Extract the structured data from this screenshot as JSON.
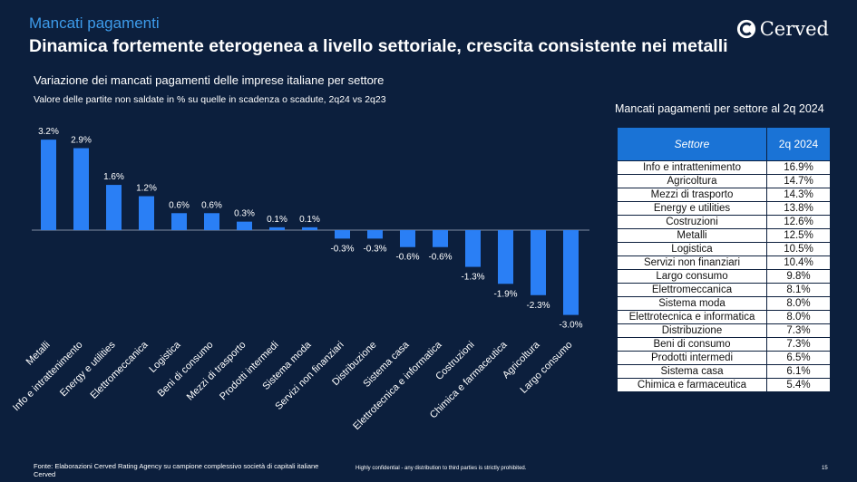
{
  "header": {
    "subtitle": "Mancati pagamenti",
    "title": "Dinamica fortemente eterogenea a livello settoriale, crescita consistente nei metalli",
    "brand": "Cerved"
  },
  "chart_data": {
    "type": "bar",
    "title": "Variazione dei mancati pagamenti delle imprese italiane per settore",
    "subtitle": "Valore delle partite non saldate in % su quelle in scadenza o scadute, 2q24 vs 2q23",
    "categories": [
      "Metalli",
      "Info e intrattenimento",
      "Energy e utilities",
      "Elettromeccanica",
      "Logistica",
      "Beni di consumo",
      "Mezzi di trasporto",
      "Prodotti intermedi",
      "Sistema moda",
      "Servizi non finanziari",
      "Distribuzione",
      "Sistema casa",
      "Elettrotecnica e informatica",
      "Costruzioni",
      "Chimica e farmaceutica",
      "Agricoltura",
      "Largo consumo"
    ],
    "values": [
      3.2,
      2.9,
      1.6,
      1.2,
      0.6,
      0.6,
      0.3,
      0.1,
      0.1,
      -0.3,
      -0.3,
      -0.6,
      -0.6,
      -1.3,
      -1.9,
      -2.3,
      -3.0
    ],
    "labels": [
      "3.2%",
      "2.9%",
      "1.6%",
      "1.2%",
      "0.6%",
      "0.6%",
      "0.3%",
      "0.1%",
      "0.1%",
      "-0.3%",
      "-0.3%",
      "-0.6%",
      "-0.6%",
      "-1.3%",
      "-1.9%",
      "-2.3%",
      "-3.0%"
    ],
    "bar_color": "#2a7ff5",
    "xlabel": "",
    "ylabel": ""
  },
  "table": {
    "title": "Mancati pagamenti per settore al 2q 2024",
    "headers": [
      "Settore",
      "2q 2024"
    ],
    "rows": [
      [
        "Info e intrattenimento",
        "16.9%"
      ],
      [
        "Agricoltura",
        "14.7%"
      ],
      [
        "Mezzi di trasporto",
        "14.3%"
      ],
      [
        "Energy e utilities",
        "13.8%"
      ],
      [
        "Costruzioni",
        "12.6%"
      ],
      [
        "Metalli",
        "12.5%"
      ],
      [
        "Logistica",
        "10.5%"
      ],
      [
        "Servizi non finanziari",
        "10.4%"
      ],
      [
        "Largo consumo",
        "9.8%"
      ],
      [
        "Elettromeccanica",
        "8.1%"
      ],
      [
        "Sistema moda",
        "8.0%"
      ],
      [
        "Elettrotecnica e informatica",
        "8.0%"
      ],
      [
        "Distribuzione",
        "7.3%"
      ],
      [
        "Beni di consumo",
        "7.3%"
      ],
      [
        "Prodotti intermedi",
        "6.5%"
      ],
      [
        "Sistema casa",
        "6.1%"
      ],
      [
        "Chimica e farmaceutica",
        "5.4%"
      ]
    ]
  },
  "footer": {
    "source": "Fonte: Elaborazioni Cerved Rating Agency su campione complessivo società di capitali italiane Cerved",
    "confidential": "Highly confidential - any distribution to third parties is strictly prohibited.",
    "page": "15"
  }
}
